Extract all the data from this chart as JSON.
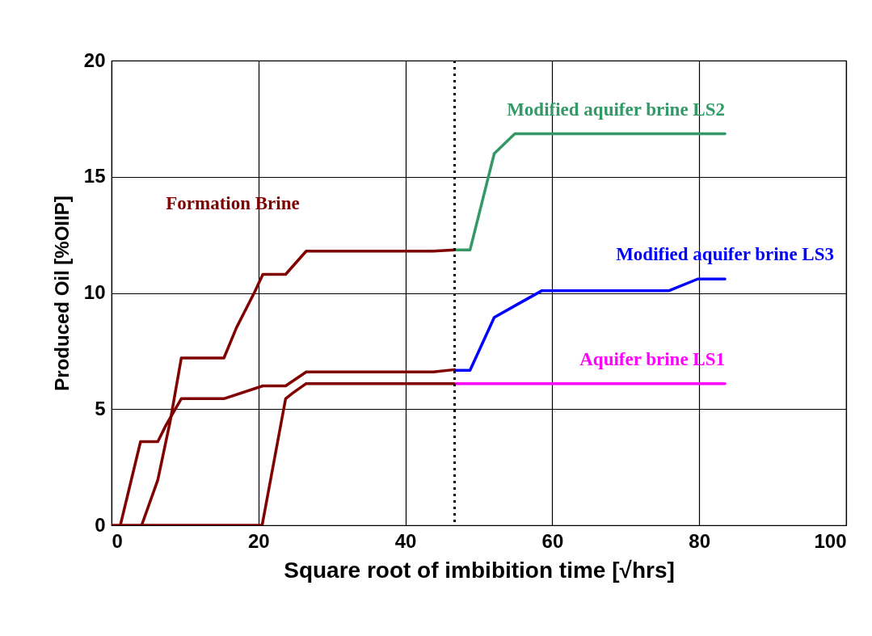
{
  "chart_data": {
    "type": "line",
    "xlabel": "Square root of imbibition time [√hrs]",
    "ylabel": "Produced Oil [%OIIP]",
    "xlim": [
      0,
      100
    ],
    "xticks": [
      0,
      20,
      40,
      60,
      80,
      100
    ],
    "ylim": [
      0,
      20
    ],
    "yticks": [
      0,
      5,
      10,
      15,
      20
    ],
    "grid": true,
    "line_style": "solid",
    "marker": "none",
    "series": [
      {
        "name": "Formation Brine",
        "color": "#800000",
        "x": [
          4.1,
          6.3,
          8,
          9.5,
          15.3,
          17,
          19.5,
          20.6,
          23.7,
          26.5,
          43.8,
          46.7
        ],
        "values": [
          0,
          1.95,
          4.5,
          7.2,
          7.2,
          8.5,
          10.05,
          10.8,
          10.8,
          11.8,
          11.8,
          11.85
        ]
      },
      {
        "color": "#800000",
        "x": [
          1.2,
          3.95,
          6.3,
          7.4,
          9.5,
          15.3,
          20.6,
          23.7,
          26.5,
          43.8,
          46.7
        ],
        "values": [
          0,
          3.6,
          3.6,
          4.3,
          5.45,
          5.45,
          6,
          6,
          6.6,
          6.6,
          6.7
        ]
      },
      {
        "color": "#800000",
        "x": [
          0,
          20.5,
          23.7,
          24.7,
          26.5,
          46.7
        ],
        "values": [
          0,
          0,
          5.45,
          5.7,
          6.1,
          6.1
        ]
      },
      {
        "name": "Modified aquifer brine LS2",
        "color": "#339966",
        "x": [
          46.9,
          48.8,
          52.1,
          54.9,
          83.5
        ],
        "values": [
          11.85,
          11.85,
          16,
          16.85,
          16.85
        ]
      },
      {
        "name": "Modified aquifer brine LS3",
        "color": "#0000ff",
        "x": [
          46.9,
          48.8,
          52.1,
          55.2,
          58.6,
          75.9,
          79.8,
          83.5
        ],
        "values": [
          6.67,
          6.67,
          8.95,
          9.5,
          10.1,
          10.1,
          10.6,
          10.6
        ]
      },
      {
        "name": "Aquifer brine LS1",
        "color": "#ff00ff",
        "x": [
          46.9,
          83.5
        ],
        "values": [
          6.1,
          6.1
        ]
      }
    ],
    "ref_lines": [
      {
        "axis": "x",
        "value": 46.7,
        "color": "#000000",
        "line_style": "dotted"
      }
    ]
  }
}
